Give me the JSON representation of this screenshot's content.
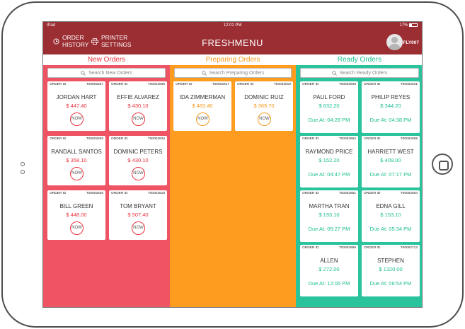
{
  "statusbar": {
    "device": "iPad",
    "time": "12:01 PM",
    "battery": "17%"
  },
  "header": {
    "order_history": [
      "ORDER",
      "HISTORY"
    ],
    "printer_settings": [
      "PRINTER",
      "SETTINGS"
    ],
    "title": "FRESHMENU",
    "user": "FLY007"
  },
  "columns": {
    "new": {
      "title": "New Orders",
      "search_placeholder": "Search New Orders"
    },
    "preparing": {
      "title": "Preparing Orders",
      "search_placeholder": "Search Preparing Orders"
    },
    "ready": {
      "title": "Ready Orders",
      "search_placeholder": "Search Ready Orders"
    }
  },
  "order_id_label": "ORDER ID",
  "now_label": "NOW",
  "new_orders": [
    {
      "id": "T00002837",
      "name": "JORDAN HART",
      "amount": "$ 447.40"
    },
    {
      "id": "T00002836",
      "name": "EFFIE ALVAREZ",
      "amount": "$ 430.10"
    },
    {
      "id": "T00002835",
      "name": "RANDALL SANTOS",
      "amount": "$ 358.10"
    },
    {
      "id": "T00002834",
      "name": "DOMINIC PETERS",
      "amount": "$ 430.10"
    },
    {
      "id": "T00002826",
      "name": "BILL GREEN",
      "amount": "$ 448.00"
    },
    {
      "id": "T00002818",
      "name": "TOM BRYANT",
      "amount": "$ 507.40"
    }
  ],
  "preparing_orders": [
    {
      "id": "T00002817",
      "name": "IDA ZIMMERMAN",
      "amount": "$ 483.40"
    },
    {
      "id": "T00002819",
      "name": "DOMINIC RUIZ",
      "amount": "$ 369.70"
    }
  ],
  "ready_orders": [
    {
      "id": "T00002630",
      "name": "PAUL FORD",
      "amount": "$ 632.20",
      "due": "Due At: 04:28 PM"
    },
    {
      "id": "T00002631",
      "name": "PHILIP REYES",
      "amount": "$ 344.20",
      "due": "Due At: 04:38 PM"
    },
    {
      "id": "T00002652",
      "name": "RAYMOND PRICE",
      "amount": "$ 152.20",
      "due": "Due At: 04:47 PM"
    },
    {
      "id": "T00002659",
      "name": "HARRIETT WEST",
      "amount": "$ 409.00",
      "due": "Due At: 07:17 PM"
    },
    {
      "id": "T00002661",
      "name": "MARTHA TRAN",
      "amount": "$ 193.10",
      "due": "Due At: 05:27 PM"
    },
    {
      "id": "T00002664",
      "name": "EDNA GILL",
      "amount": "$ 153.10",
      "due": "Due At: 05:34 PM"
    },
    {
      "id": "T00002689",
      "name": "ALLEN",
      "amount": "$ 272.00",
      "due": "Due At: 12:06 PM"
    },
    {
      "id": "T00002713",
      "name": "STEPHEN",
      "amount": "$ 1320.00",
      "due": "Due At: 06:54 PM"
    }
  ],
  "colors": {
    "header": "#9b2e33",
    "new": "#ef5464",
    "preparing": "#fd9c1e",
    "ready": "#29c39c",
    "new_text": "#e8323f",
    "preparing_text": "#f39a1c",
    "ready_text": "#1dbf92"
  }
}
